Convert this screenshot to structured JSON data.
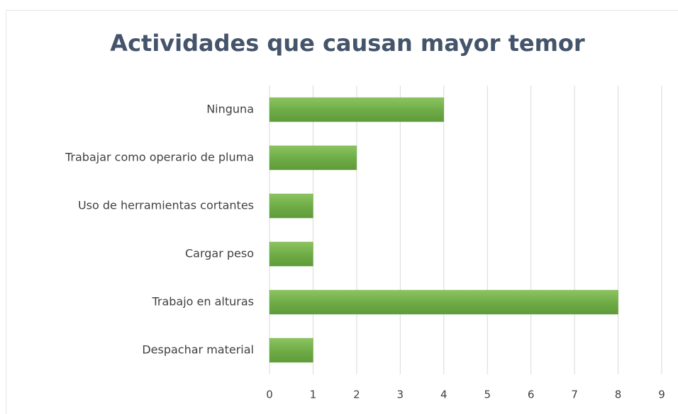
{
  "chart_data": {
    "type": "bar",
    "orientation": "horizontal",
    "title": "Actividades que causan mayor temor",
    "categories": [
      "Ninguna",
      "Trabajar como operario de pluma",
      "Uso de herramientas cortantes",
      "Cargar peso",
      "Trabajo en alturas",
      "Despachar material"
    ],
    "values": [
      4,
      2,
      1,
      1,
      8,
      1
    ],
    "color": "#70ad47",
    "xlim": [
      0,
      9
    ],
    "xticks": [
      0,
      1,
      2,
      3,
      4,
      5,
      6,
      7,
      8,
      9
    ],
    "grid": true
  }
}
